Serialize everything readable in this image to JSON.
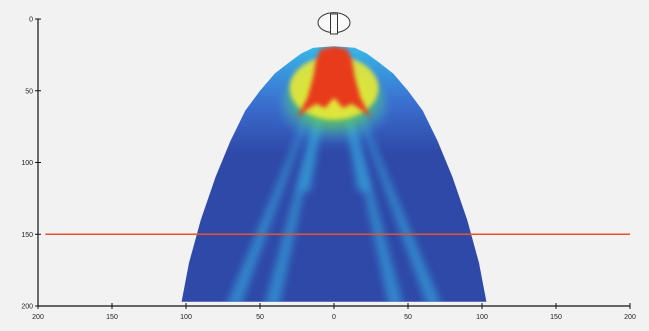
{
  "chart_data": {
    "type": "heatmap",
    "title": "",
    "xlabel": "",
    "ylabel": "",
    "x_ticks": [
      "200",
      "150",
      "100",
      "50",
      "0",
      "50",
      "100",
      "150",
      "200"
    ],
    "y_ticks": [
      "0",
      "50",
      "100",
      "150",
      "200"
    ],
    "x_tick_values": [
      -200,
      -150,
      -100,
      -50,
      0,
      50,
      100,
      150,
      200
    ],
    "y_tick_values": [
      0,
      50,
      100,
      150,
      200
    ],
    "xlim": [
      -200,
      200
    ],
    "ylim": [
      0,
      200
    ],
    "y_inverted": true,
    "grid": false,
    "colormap": [
      "#2f49a8",
      "#3a6fd0",
      "#37b8e8",
      "#5cc85a",
      "#e8e838",
      "#e83a1e"
    ],
    "reference_line": {
      "y": 150,
      "color": "#e8532e"
    },
    "emitter": {
      "x": 0,
      "y": 0
    },
    "spray_outline": [
      [
        -103,
        197
      ],
      [
        -98,
        170
      ],
      [
        -90,
        140
      ],
      [
        -80,
        110
      ],
      [
        -70,
        85
      ],
      [
        -60,
        64
      ],
      [
        -50,
        50
      ],
      [
        -40,
        38
      ],
      [
        -30,
        30
      ],
      [
        -22,
        24
      ],
      [
        -14,
        20
      ],
      [
        0,
        19
      ],
      [
        14,
        20
      ],
      [
        22,
        24
      ],
      [
        30,
        30
      ],
      [
        40,
        38
      ],
      [
        50,
        50
      ],
      [
        60,
        64
      ],
      [
        70,
        85
      ],
      [
        80,
        110
      ],
      [
        90,
        140
      ],
      [
        98,
        170
      ],
      [
        103,
        197
      ]
    ],
    "hot_core_outline": [
      [
        -25,
        69
      ],
      [
        -18,
        55
      ],
      [
        -14,
        40
      ],
      [
        -12,
        28
      ],
      [
        -9,
        21
      ],
      [
        0,
        19
      ],
      [
        9,
        21
      ],
      [
        12,
        28
      ],
      [
        14,
        40
      ],
      [
        18,
        55
      ],
      [
        25,
        69
      ],
      [
        18,
        63
      ],
      [
        12,
        59
      ],
      [
        6,
        62
      ],
      [
        0,
        55
      ],
      [
        -6,
        62
      ],
      [
        -12,
        59
      ],
      [
        -18,
        63
      ]
    ]
  }
}
